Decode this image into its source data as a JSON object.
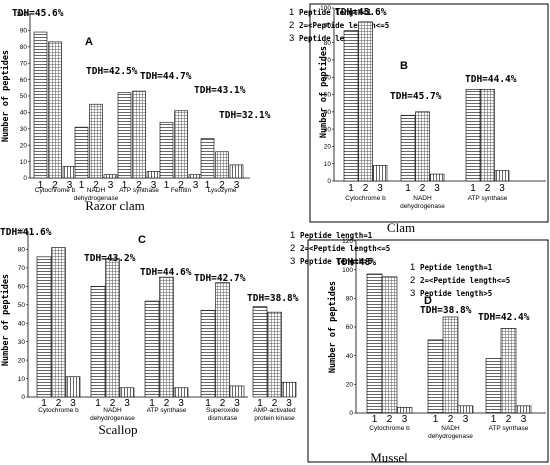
{
  "legend": [
    "Peptide length=1",
    "2=<Peptide length<=5",
    "Peptide length>5"
  ],
  "legend_numbers": [
    "1",
    "2",
    "3"
  ],
  "ylabel": "Number of peptides",
  "bar_numbers": [
    "1",
    "2",
    "3"
  ],
  "colors": {
    "bar_fill": "#ffffff",
    "line": "#000000",
    "pattern1": "horizontal-stripes",
    "pattern2": "grid",
    "pattern3": "vertical-stripes"
  },
  "chart_data": [
    {
      "type": "bar",
      "letter": "A",
      "caption": "Razor clam",
      "ylabel": "Number of peptides",
      "ylim": [
        0,
        100
      ],
      "yticks": [
        0,
        10,
        20,
        30,
        40,
        50,
        60,
        70,
        80,
        90,
        100
      ],
      "legend_labels": [
        "Peptide length=1",
        "2=<Peptide length<=5",
        "Peptide length>5"
      ],
      "groups": [
        {
          "name": "Cytochrome b",
          "name_lines": [
            "Cytochrome b"
          ],
          "tdh": "TDH=45.6%",
          "values": [
            89,
            83,
            7
          ]
        },
        {
          "name": "NADH dehydrogenase",
          "name_lines": [
            "NADH",
            "dehydrogenase"
          ],
          "tdh": "TDH=42.5%",
          "values": [
            31,
            45,
            2
          ]
        },
        {
          "name": "ATP synthase",
          "name_lines": [
            "ATP synthase"
          ],
          "tdh": "TDH=44.7%",
          "values": [
            52,
            53,
            4
          ]
        },
        {
          "name": "Ferritin",
          "name_lines": [
            "Ferritin"
          ],
          "tdh": "TDH=43.1%",
          "values": [
            34,
            41,
            2
          ]
        },
        {
          "name": "Lysozyme",
          "name_lines": [
            "Lysozyme"
          ],
          "tdh": "TDH=32.1%",
          "values": [
            24,
            16,
            8
          ]
        }
      ]
    },
    {
      "type": "bar",
      "letter": "B",
      "caption": "Clam",
      "ylabel": "Number of peptides",
      "ylim": [
        0,
        100
      ],
      "yticks": [
        0,
        10,
        20,
        30,
        40,
        50,
        60,
        70,
        80,
        90,
        100
      ],
      "legend_labels": [],
      "groups": [
        {
          "name": "Cytochrome b",
          "name_lines": [
            "Cytochrome b"
          ],
          "tdh": "TDH=45.6%",
          "values": [
            87,
            92,
            9
          ]
        },
        {
          "name": "NADH dehydrogenase",
          "name_lines": [
            "NADH",
            "dehydrogenase"
          ],
          "tdh": "TDH=45.7%",
          "values": [
            38,
            40,
            4
          ]
        },
        {
          "name": "ATP synthase",
          "name_lines": [
            "ATP synthase"
          ],
          "tdh": "TDH=44.4%",
          "values": [
            53,
            53,
            6
          ]
        }
      ]
    },
    {
      "type": "bar",
      "letter": "C",
      "caption": "Scallop",
      "ylabel": "Number of peptides",
      "ylim": [
        0,
        90
      ],
      "yticks": [
        0,
        10,
        20,
        30,
        40,
        50,
        60,
        70,
        80,
        90
      ],
      "legend_labels": [
        "Peptide length=1",
        "2=<Peptide length<=5",
        "Peptide length>5"
      ],
      "groups": [
        {
          "name": "Cytochrome b",
          "name_lines": [
            "Cytochrome b"
          ],
          "tdh": "TDH=41.6%",
          "values": [
            76,
            81,
            11
          ]
        },
        {
          "name": "NADH dehydrogenase",
          "name_lines": [
            "NADH",
            "dehydrogenase"
          ],
          "tdh": "TDH=43.2%",
          "values": [
            60,
            75,
            5
          ]
        },
        {
          "name": "ATP synthase",
          "name_lines": [
            "ATP synthase"
          ],
          "tdh": "TDH=44.6%",
          "values": [
            52,
            65,
            5
          ]
        },
        {
          "name": "Superoxide dismutase",
          "name_lines": [
            "Superoxide",
            "dismutase"
          ],
          "tdh": "TDH=42.7%",
          "values": [
            47,
            62,
            6
          ]
        },
        {
          "name": "AMP-activated protein kinase",
          "name_lines": [
            "AMP-activated",
            "protein kinase"
          ],
          "tdh": "TDH=38.8%",
          "values": [
            49,
            46,
            8
          ]
        }
      ]
    },
    {
      "type": "bar",
      "letter": "D",
      "caption": "Mussel",
      "ylabel": "Number of peptides",
      "ylim": [
        0,
        120
      ],
      "yticks": [
        0,
        20,
        40,
        60,
        80,
        100,
        120
      ],
      "legend_labels": [
        "Peptide length=1",
        "2=<Peptide length<=5",
        "Peptide length>5"
      ],
      "groups": [
        {
          "name": "Cytochrome b",
          "name_lines": [
            "Cytochrome b"
          ],
          "tdh": "TDH=48%",
          "values": [
            97,
            95,
            4
          ]
        },
        {
          "name": "NADH dehydrogenase",
          "name_lines": [
            "NADH",
            "dehydrogenase"
          ],
          "tdh": "TDH=38.8%",
          "values": [
            51,
            67,
            5
          ]
        },
        {
          "name": "ATP synthase",
          "name_lines": [
            "ATP synthase"
          ],
          "tdh": "TDH=42.4%",
          "values": [
            38,
            59,
            5
          ]
        }
      ]
    }
  ]
}
